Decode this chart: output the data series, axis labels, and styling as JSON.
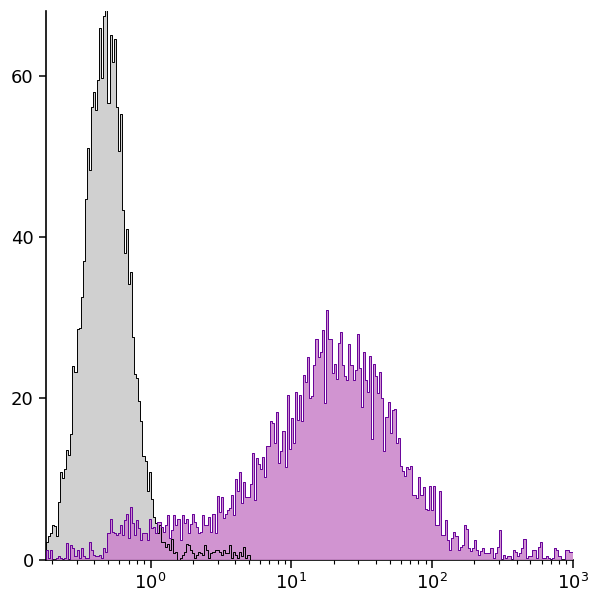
{
  "xlim": [
    0.18,
    1000
  ],
  "ylim": [
    0,
    68
  ],
  "yticks": [
    0,
    20,
    40,
    60
  ],
  "background_color": "#ffffff",
  "control_color_fill": "#d0d0d0",
  "control_color_edge": "#000000",
  "sample_color_fill": "#cc88cc",
  "sample_color_edge": "#660099",
  "control_peak_y": 65,
  "sample_peak_y": 26,
  "n_bins": 256
}
